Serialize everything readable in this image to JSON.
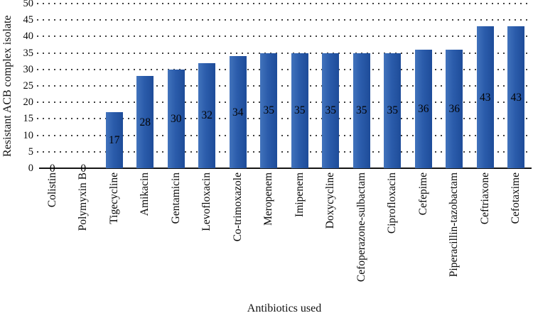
{
  "figure": {
    "background": "#ffffff"
  },
  "chart_data": {
    "type": "bar",
    "title": "",
    "xlabel": "Antibiotics used",
    "ylabel": "Resistant ACB complex isolate",
    "categories": [
      "Colistin",
      "Polymyxin B",
      "Tigecycline",
      "Amikacin",
      "Gentamicin",
      "Levofloxacin",
      "Co-trimoxazole",
      "Meropenem",
      "Imipenem",
      "Doxycycline",
      "Cefoperazone-sulbactam",
      "Ciprofloxacin",
      "Cefepime",
      "Piperacillin-tazobactam",
      "Ceftriaxone",
      "Cefotaxime"
    ],
    "values": [
      0,
      0,
      17,
      28,
      30,
      32,
      34,
      35,
      35,
      35,
      35,
      35,
      36,
      36,
      43,
      43
    ],
    "ylim": [
      0,
      50
    ],
    "ytick_step": 5,
    "yticks": [
      0,
      5,
      10,
      15,
      20,
      25,
      30,
      35,
      40,
      45,
      50
    ],
    "grid": {
      "axis": "y",
      "style": "dotted",
      "color": "#3f3f3f"
    },
    "legend": "none",
    "bar_style": {
      "color_left": "#4273BC",
      "color_mid": "#2B5CAB",
      "color_right": "#1E4C99",
      "value_label_color": "#030303",
      "value_labels_inside": true
    }
  }
}
